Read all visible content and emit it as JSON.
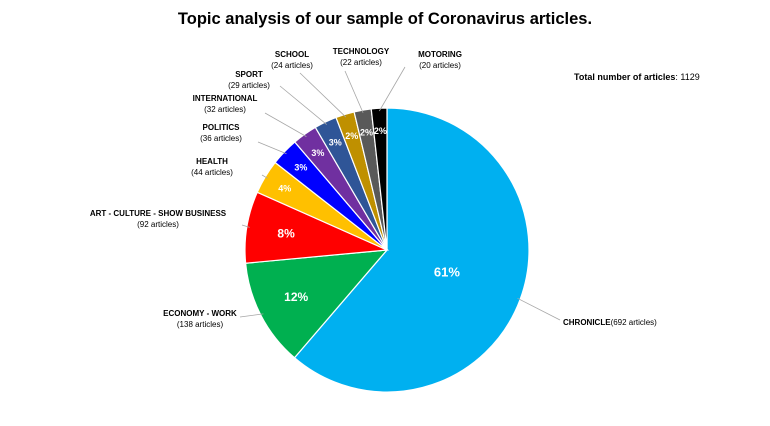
{
  "chart_data": {
    "type": "pie",
    "title": "Topic analysis of our sample of Coronavirus articles.",
    "total_label": "Total number of articles",
    "total_value": "1129",
    "slices": [
      {
        "category": "CHRONICLE",
        "count_label": "(692 articles)",
        "value": 692,
        "percent_label": "61%",
        "color": "#00B0F0"
      },
      {
        "category": "ECONOMY - WORK",
        "count_label": "(138 articles)",
        "value": 138,
        "percent_label": "12%",
        "color": "#00B050"
      },
      {
        "category": "ART - CULTURE - SHOW BUSINESS",
        "count_label": "(92 articles)",
        "value": 92,
        "percent_label": "8%",
        "color": "#FF0000"
      },
      {
        "category": "HEALTH",
        "count_label": "(44 articles)",
        "value": 44,
        "percent_label": "4%",
        "color": "#FFC000"
      },
      {
        "category": "POLITICS",
        "count_label": "(36 articles)",
        "value": 36,
        "percent_label": "3%",
        "color": "#0000FF"
      },
      {
        "category": "INTERNATIONAL",
        "count_label": "(32 articles)",
        "value": 32,
        "percent_label": "3%",
        "color": "#7030A0"
      },
      {
        "category": "SPORT",
        "count_label": "(29 articles)",
        "value": 29,
        "percent_label": "3%",
        "color": "#2F5597"
      },
      {
        "category": "SCHOOL",
        "count_label": "(24 articles)",
        "value": 24,
        "percent_label": "2%",
        "color": "#BF9000"
      },
      {
        "category": "TECHNOLOGY",
        "count_label": "(22 articles)",
        "value": 22,
        "percent_label": "2%",
        "color": "#595959"
      },
      {
        "category": "MOTORING",
        "count_label": "(20 articles)",
        "value": 20,
        "percent_label": "2%",
        "color": "#000000"
      }
    ]
  }
}
